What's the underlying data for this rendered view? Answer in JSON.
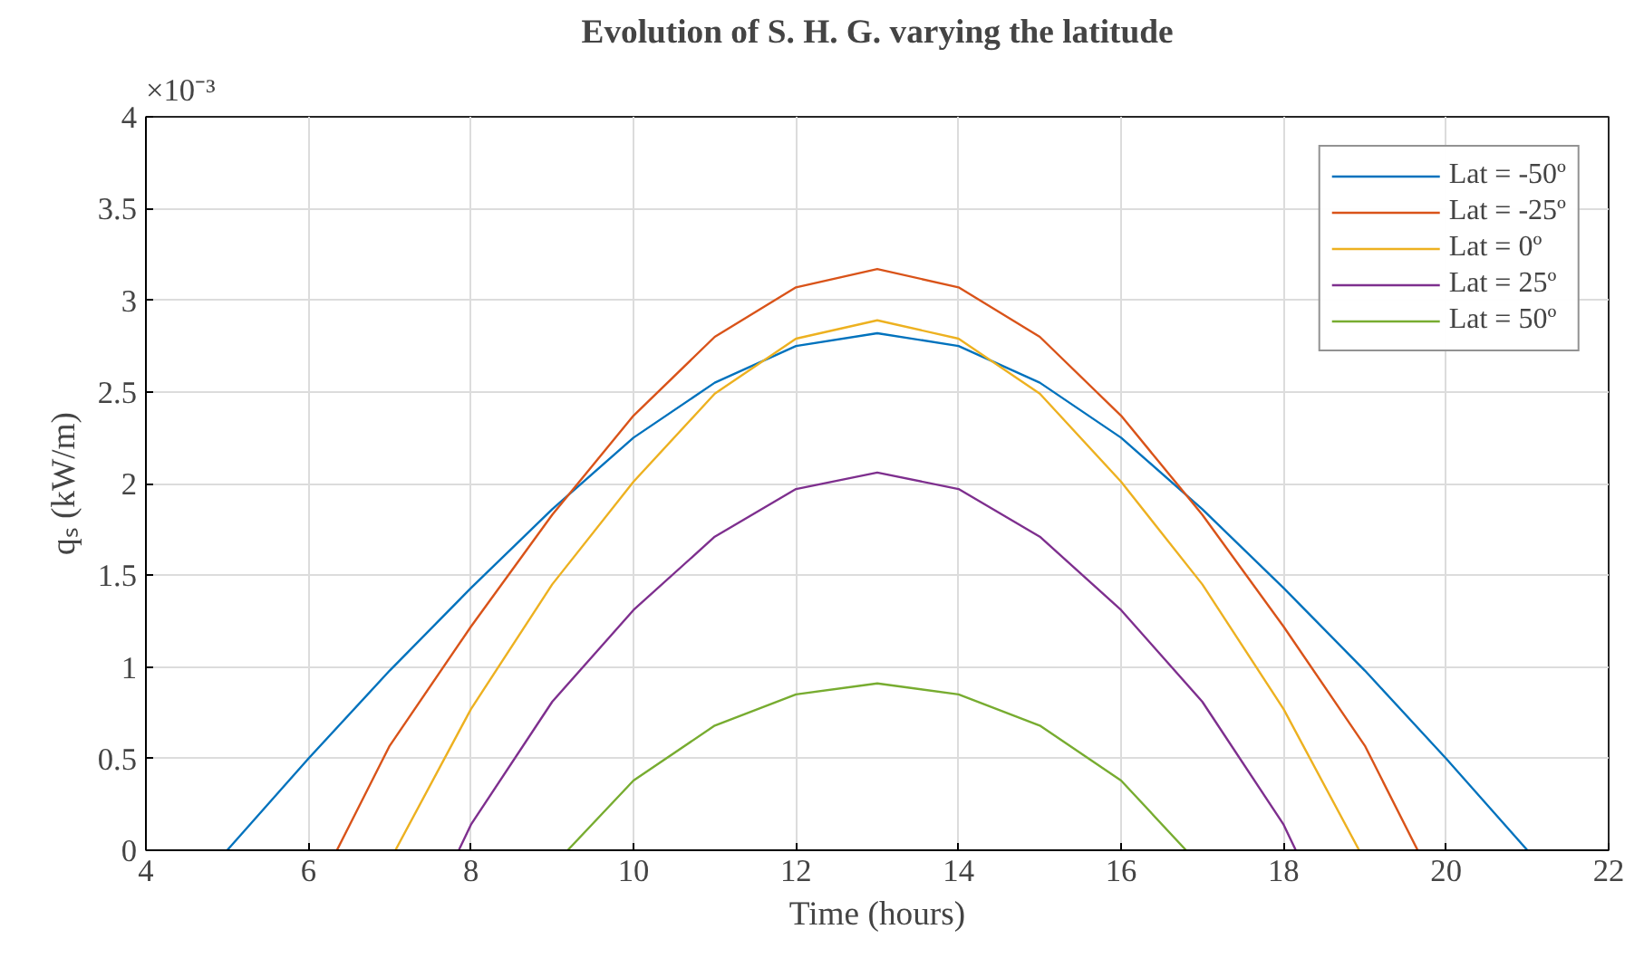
{
  "chart_data": {
    "type": "line",
    "title": "Evolution of S. H. G. varying the latitude",
    "xlabel": "Time (hours)",
    "ylabel": "qₛ (kW/m)",
    "annotations": [
      "×10⁻³"
    ],
    "xlim": [
      4,
      22
    ],
    "xticks": [
      4,
      6,
      8,
      10,
      12,
      14,
      16,
      18,
      20,
      22
    ],
    "ylim": [
      0,
      4
    ],
    "yticks": [
      0,
      0.5,
      1,
      1.5,
      2,
      2.5,
      3,
      3.5,
      4
    ],
    "grid": true,
    "legend": "top right",
    "marker": "none",
    "line_style": "solid",
    "series": [
      {
        "name": "Lat = -50º",
        "color": "#0072bd",
        "x": [
          5,
          6,
          7,
          8,
          9,
          10,
          11,
          12,
          13,
          14,
          15,
          16,
          17,
          18,
          19,
          20,
          21
        ],
        "values": [
          0,
          0.5,
          0.98,
          1.43,
          1.86,
          2.25,
          2.55,
          2.75,
          2.82,
          2.75,
          2.55,
          2.25,
          1.86,
          1.43,
          0.98,
          0.5,
          0
        ]
      },
      {
        "name": "Lat = -25º",
        "color": "#d95319",
        "x": [
          6.35,
          7,
          8,
          9,
          10,
          11,
          12,
          13,
          14,
          15,
          16,
          17,
          18,
          19,
          19.65
        ],
        "values": [
          0,
          0.57,
          1.22,
          1.83,
          2.37,
          2.8,
          3.07,
          3.17,
          3.07,
          2.8,
          2.37,
          1.83,
          1.22,
          0.57,
          0
        ]
      },
      {
        "name": "Lat = 0º",
        "color": "#edb120",
        "x": [
          7.07,
          8,
          9,
          10,
          11,
          12,
          13,
          14,
          15,
          16,
          17,
          18,
          18.93
        ],
        "values": [
          0,
          0.77,
          1.45,
          2.01,
          2.49,
          2.79,
          2.89,
          2.79,
          2.49,
          2.01,
          1.45,
          0.77,
          0
        ]
      },
      {
        "name": "Lat = 25º",
        "color": "#7e2f8e",
        "x": [
          7.85,
          8,
          9,
          10,
          11,
          12,
          13,
          14,
          15,
          16,
          17,
          18,
          18.15
        ],
        "values": [
          0,
          0.14,
          0.81,
          1.31,
          1.71,
          1.97,
          2.06,
          1.97,
          1.71,
          1.31,
          0.81,
          0.14,
          0
        ]
      },
      {
        "name": "Lat = 50º",
        "color": "#77ac30",
        "x": [
          9.19,
          10,
          11,
          12,
          13,
          14,
          15,
          16,
          16.8
        ],
        "values": [
          0,
          0.38,
          0.68,
          0.85,
          0.91,
          0.85,
          0.68,
          0.38,
          0
        ]
      }
    ]
  }
}
